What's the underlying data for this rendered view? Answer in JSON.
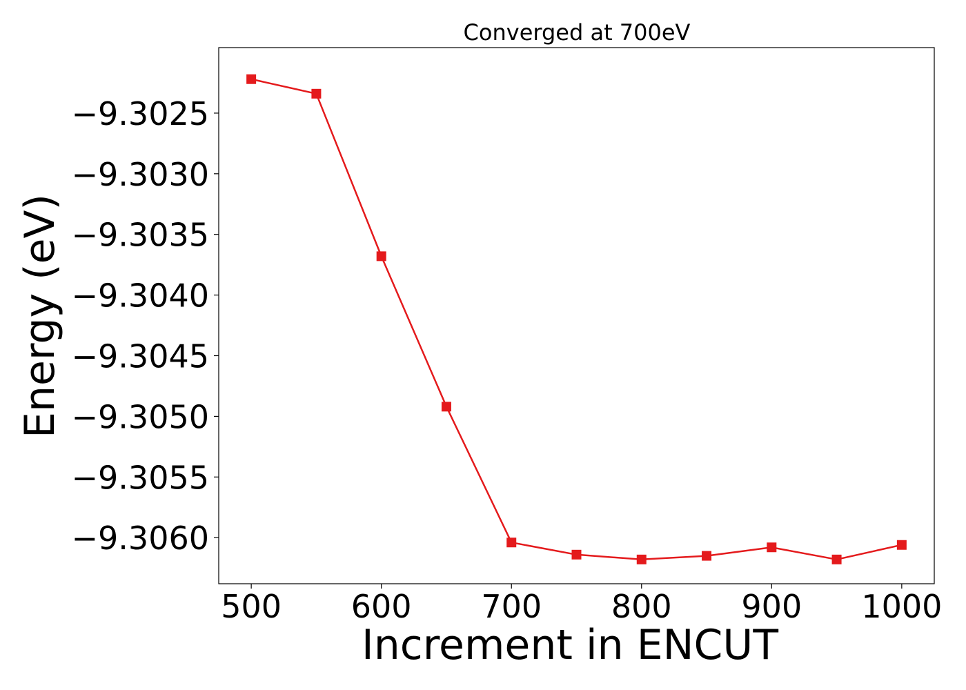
{
  "chart_data": {
    "type": "line",
    "title": "Converged at 700eV",
    "xlabel": "Increment in ENCUT",
    "ylabel": "Energy (eV)",
    "xlim": [
      475,
      1025
    ],
    "ylim": [
      -9.30638,
      -9.30196
    ],
    "grid": false,
    "x_ticks": [
      {
        "value": 500,
        "label": "500"
      },
      {
        "value": 600,
        "label": "600"
      },
      {
        "value": 700,
        "label": "700"
      },
      {
        "value": 800,
        "label": "800"
      },
      {
        "value": 900,
        "label": "900"
      },
      {
        "value": 1000,
        "label": "1000"
      }
    ],
    "y_ticks": [
      {
        "value": -9.3025,
        "label": "−9.3025"
      },
      {
        "value": -9.303,
        "label": "−9.3030"
      },
      {
        "value": -9.3035,
        "label": "−9.3035"
      },
      {
        "value": -9.304,
        "label": "−9.3040"
      },
      {
        "value": -9.3045,
        "label": "−9.3045"
      },
      {
        "value": -9.305,
        "label": "−9.3050"
      },
      {
        "value": -9.3055,
        "label": "−9.3055"
      },
      {
        "value": -9.306,
        "label": "−9.3060"
      }
    ],
    "series": [
      {
        "color": "#e41a1c",
        "marker": "square",
        "x": [
          500,
          550,
          600,
          650,
          700,
          750,
          800,
          850,
          900,
          950,
          1000
        ],
        "y": [
          -9.30222,
          -9.30234,
          -9.30368,
          -9.30492,
          -9.30604,
          -9.30614,
          -9.30618,
          -9.30615,
          -9.30608,
          -9.30618,
          -9.30606
        ]
      }
    ]
  }
}
